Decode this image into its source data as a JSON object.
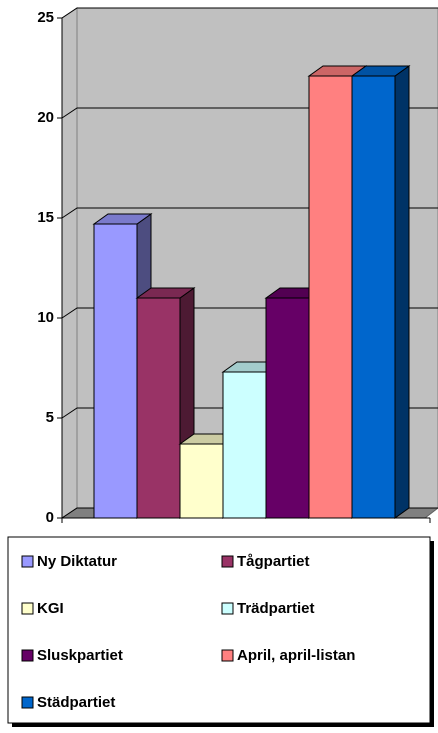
{
  "chart_data": {
    "type": "bar",
    "series": [
      {
        "name": "Ny Diktatur",
        "color": "#9999ff",
        "values": [
          14.7
        ]
      },
      {
        "name": "Tågpartiet",
        "color": "#993366",
        "values": [
          11
        ]
      },
      {
        "name": "KGI",
        "color": "#ffffcc",
        "values": [
          3.7
        ]
      },
      {
        "name": "Trädpartiet",
        "color": "#ccffff",
        "values": [
          7.3
        ]
      },
      {
        "name": "Sluskpartiet",
        "color": "#660066",
        "values": [
          11
        ]
      },
      {
        "name": "April, april-listan",
        "color": "#ff8080",
        "values": [
          22.1
        ]
      },
      {
        "name": "Städpartiet",
        "color": "#0066cc",
        "values": [
          22.1
        ]
      }
    ],
    "ylim": [
      0,
      25
    ],
    "yticks": [
      0,
      5,
      10,
      15,
      20,
      25
    ],
    "grid": true,
    "legend": "bottom"
  }
}
